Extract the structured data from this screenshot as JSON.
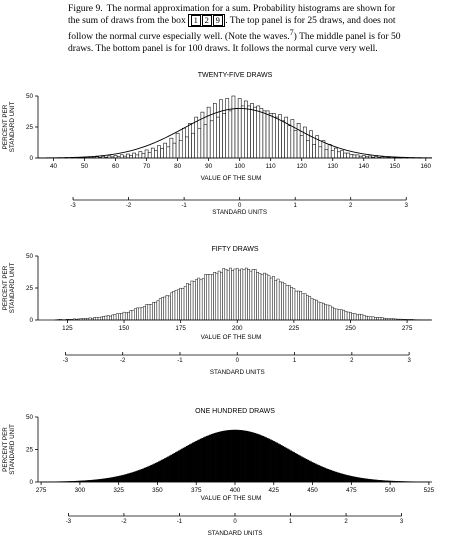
{
  "caption": {
    "label": "Figure 9.",
    "text_before_box": "The normal approximation for a sum. Probability histograms are shown for the sum of draws from the box",
    "box_tickets": [
      "1",
      "2",
      "9"
    ],
    "text_after_box": ". The top panel is for 25 draws, and does not follow the normal curve especially well. (Note the waves.",
    "footnote": "7",
    "text_end": ") The middle panel is for 50 draws. The bottom panel is for 100 draws. It follows the normal curve very well."
  },
  "chart_data": [
    {
      "type": "bar",
      "title": "TWENTY-FIVE DRAWS",
      "ylabel": "PERCENT PER STANDARD UNIT",
      "xlabel": "VALUE OF THE SUM",
      "second_axis_label": "STANDARD UNITS",
      "xlim": [
        35,
        162
      ],
      "ylim": [
        0,
        50
      ],
      "yticks": [
        0,
        25,
        50
      ],
      "xticks": [
        40,
        50,
        60,
        70,
        80,
        90,
        100,
        110,
        120,
        130,
        140,
        150,
        160
      ],
      "std_ticks": [
        -3,
        -2,
        -1,
        0,
        1,
        2,
        3
      ],
      "std_mean": 100,
      "std_sd": 17.9,
      "normal_curve": true,
      "x": [
        44,
        45,
        46,
        47,
        48,
        49,
        50,
        51,
        52,
        53,
        54,
        55,
        56,
        57,
        58,
        59,
        60,
        61,
        62,
        63,
        64,
        65,
        66,
        67,
        68,
        69,
        70,
        71,
        72,
        73,
        74,
        75,
        76,
        77,
        78,
        79,
        80,
        81,
        82,
        83,
        84,
        85,
        86,
        87,
        88,
        89,
        90,
        91,
        92,
        93,
        94,
        95,
        96,
        97,
        98,
        99,
        100,
        101,
        102,
        103,
        104,
        105,
        106,
        107,
        108,
        109,
        110,
        111,
        112,
        113,
        114,
        115,
        116,
        117,
        118,
        119,
        120,
        121,
        122,
        123,
        124,
        125,
        126,
        127,
        128,
        129,
        130,
        131,
        132,
        133,
        134,
        135,
        136,
        137,
        138,
        139,
        140,
        141,
        142,
        143,
        144,
        145,
        146,
        147,
        148,
        149,
        150,
        151,
        152,
        153,
        154,
        155,
        156,
        157,
        158,
        159,
        160
      ],
      "values": [
        0.3,
        0,
        0.4,
        0,
        0.5,
        0.2,
        0.6,
        0.3,
        0.8,
        0.4,
        1.0,
        0.5,
        1.3,
        0.7,
        1.7,
        0.9,
        2.1,
        1.2,
        2.6,
        1.5,
        3.2,
        1.9,
        4.0,
        2.5,
        5.2,
        3.5,
        6.5,
        4.5,
        8.0,
        6.0,
        10,
        7.5,
        12,
        9,
        16,
        12,
        20,
        14,
        24,
        17,
        28,
        20,
        33,
        24,
        37,
        27,
        41,
        30,
        44,
        33,
        47,
        36,
        48,
        38,
        50,
        40,
        48,
        42,
        46,
        42,
        44,
        41,
        42,
        40,
        38,
        38,
        36,
        36,
        33,
        35,
        30,
        33,
        26,
        31,
        22,
        28,
        18,
        25,
        14,
        22,
        11,
        18,
        9,
        14,
        7,
        11,
        6,
        8,
        5,
        6,
        4,
        4,
        3,
        2.5,
        2.5,
        1.5,
        2,
        1,
        1.6,
        0.7,
        1.2,
        0.5,
        0.9,
        0.3,
        0.6,
        0.2,
        0.4,
        0.1,
        0.3,
        0,
        0.2,
        0,
        0.1,
        0,
        0.1,
        0,
        0
      ]
    },
    {
      "type": "bar",
      "title": "FIFTY DRAWS",
      "ylabel": "PERCENT PER STANDARD UNIT",
      "xlabel": "VALUE OF THE SUM",
      "second_axis_label": "STANDARD UNITS",
      "xlim": [
        112,
        286
      ],
      "ylim": [
        0,
        50
      ],
      "yticks": [
        0,
        25,
        50
      ],
      "xticks": [
        125,
        150,
        175,
        200,
        225,
        250,
        275
      ],
      "std_ticks": [
        -3,
        -2,
        -1,
        0,
        1,
        2,
        3
      ],
      "std_mean": 200,
      "std_sd": 25.3,
      "normal_curve": false,
      "normal_mean": 200,
      "normal_sd": 25.3,
      "peak": 40,
      "noise": 3,
      "min_x": 120,
      "max_x": 285
    },
    {
      "type": "bar",
      "title": "ONE HUNDRED DRAWS",
      "ylabel": "PERCENT PER STANDARD UNIT",
      "xlabel": "VALUE OF THE SUM",
      "second_axis_label": "STANDARD UNITS",
      "xlim": [
        273,
        527
      ],
      "ylim": [
        0,
        50
      ],
      "yticks": [
        0,
        25,
        50
      ],
      "xticks": [
        275,
        300,
        325,
        350,
        375,
        400,
        425,
        450,
        475,
        500,
        525
      ],
      "std_ticks": [
        -3,
        -2,
        -1,
        0,
        1,
        2,
        3
      ],
      "std_mean": 400,
      "std_sd": 35.8,
      "normal_curve": false,
      "normal_mean": 400,
      "normal_sd": 35.8,
      "peak": 40,
      "noise": 0,
      "min_x": 275,
      "max_x": 525
    }
  ]
}
